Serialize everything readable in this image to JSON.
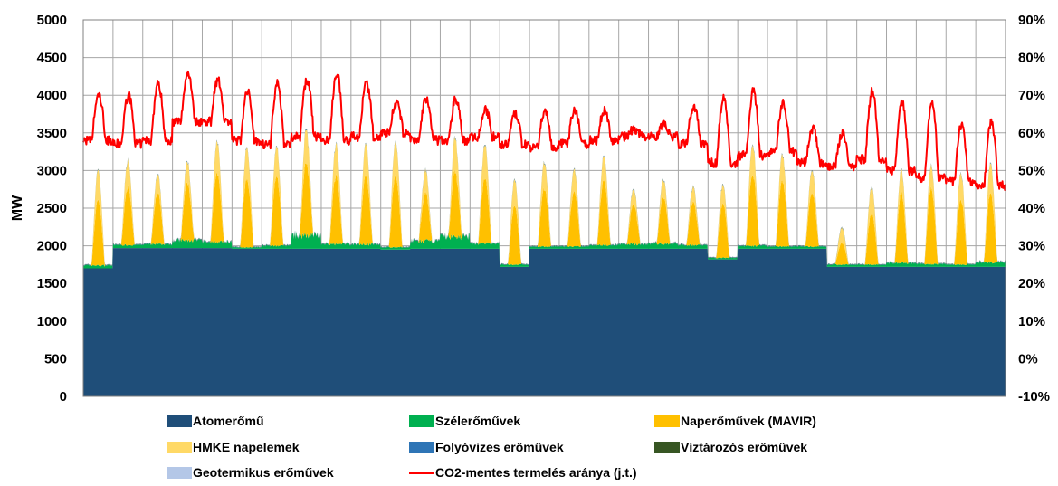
{
  "chart_data": {
    "type": "area",
    "ylabel": "MW",
    "ylim": [
      0,
      5000
    ],
    "y_ticks": [
      "0",
      "500",
      "1000",
      "1500",
      "2000",
      "2500",
      "3000",
      "3500",
      "4000",
      "4500",
      "5000"
    ],
    "y2lim": [
      -10,
      90
    ],
    "y2_ticks": [
      "-10%",
      "0%",
      "10%",
      "20%",
      "30%",
      "40%",
      "50%",
      "60%",
      "70%",
      "80%",
      "90%"
    ],
    "n_days": 31,
    "grid": true,
    "legend_position": "bottom",
    "series": [
      {
        "name": "Atomerőmű",
        "kind": "area",
        "color": "#1f4e79",
        "daily_mw": [
          1700,
          1970,
          1970,
          1970,
          1970,
          1960,
          1960,
          1960,
          1960,
          1960,
          1950,
          1960,
          1960,
          1960,
          1720,
          1960,
          1960,
          1960,
          1960,
          1960,
          1960,
          1820,
          1960,
          1960,
          1960,
          1720,
          1720,
          1720,
          1720,
          1720,
          1720
        ]
      },
      {
        "name": "Szélerőművek",
        "kind": "area",
        "color": "#00b050",
        "daily_mw": [
          40,
          40,
          50,
          100,
          80,
          20,
          40,
          180,
          60,
          60,
          30,
          100,
          160,
          70,
          30,
          30,
          30,
          50,
          60,
          70,
          50,
          20,
          40,
          30,
          30,
          30,
          30,
          50,
          40,
          30,
          60
        ]
      },
      {
        "name": "Naperőművek (MAVIR)",
        "kind": "area",
        "color": "#ffc000",
        "daily_peak_mw": [
          900,
          800,
          700,
          800,
          950,
          950,
          950,
          1000,
          950,
          950,
          1000,
          650,
          900,
          900,
          800,
          800,
          750,
          900,
          550,
          650,
          600,
          750,
          1000,
          900,
          750,
          300,
          700,
          950,
          1050,
          900,
          950
        ]
      },
      {
        "name": "HMKE napelemek",
        "kind": "area",
        "color": "#ffd966",
        "daily_peak_mw": [
          400,
          350,
          250,
          280,
          420,
          420,
          400,
          450,
          420,
          420,
          450,
          300,
          450,
          450,
          350,
          350,
          300,
          320,
          200,
          230,
          200,
          250,
          400,
          350,
          300,
          200,
          350,
          300,
          300,
          350,
          400
        ]
      },
      {
        "name": "Folyóvizes erőművek",
        "kind": "area",
        "color": "#2e75b6",
        "value_mw": 5
      },
      {
        "name": "Víztározós erőművek",
        "kind": "area",
        "color": "#375623",
        "value_mw": 5
      },
      {
        "name": "Geotermikus erőművek",
        "kind": "area",
        "color": "#b4c7e7",
        "value_mw": 3
      },
      {
        "name": "CO2-mentes termelés aránya (j.t.)",
        "kind": "line",
        "axis": "right",
        "color": "#ff0000",
        "daily_base_pct": [
          58,
          57,
          58,
          63,
          63,
          58,
          57,
          59,
          58,
          59,
          60,
          58,
          58,
          59,
          57,
          56,
          57,
          58,
          59,
          59,
          57,
          52,
          54,
          55,
          52,
          51,
          53,
          50,
          48,
          47,
          46
        ],
        "daily_peak_pct": [
          70,
          70,
          73,
          76,
          74,
          71,
          73,
          74,
          76,
          73,
          68,
          69,
          69,
          66,
          65,
          66,
          66,
          66,
          61,
          62,
          67,
          69,
          71,
          68,
          61,
          60,
          71,
          68,
          68,
          62,
          63
        ]
      }
    ]
  },
  "legend": {
    "items": [
      {
        "label": "Atomerőmű",
        "symbol": "box",
        "color": "#1f4e79"
      },
      {
        "label": "Szélerőművek",
        "symbol": "box",
        "color": "#00b050"
      },
      {
        "label": "Naperőművek (MAVIR)",
        "symbol": "box",
        "color": "#ffc000"
      },
      {
        "label": "HMKE napelemek",
        "symbol": "box",
        "color": "#ffd966"
      },
      {
        "label": "Folyóvizes erőművek",
        "symbol": "box",
        "color": "#2e75b6"
      },
      {
        "label": "Víztározós erőművek",
        "symbol": "box",
        "color": "#375623"
      },
      {
        "label": "Geotermikus erőművek",
        "symbol": "box",
        "color": "#b4c7e7"
      },
      {
        "label": "CO2-mentes termelés aránya (j.t.)",
        "symbol": "line",
        "color": "#ff0000"
      }
    ]
  }
}
